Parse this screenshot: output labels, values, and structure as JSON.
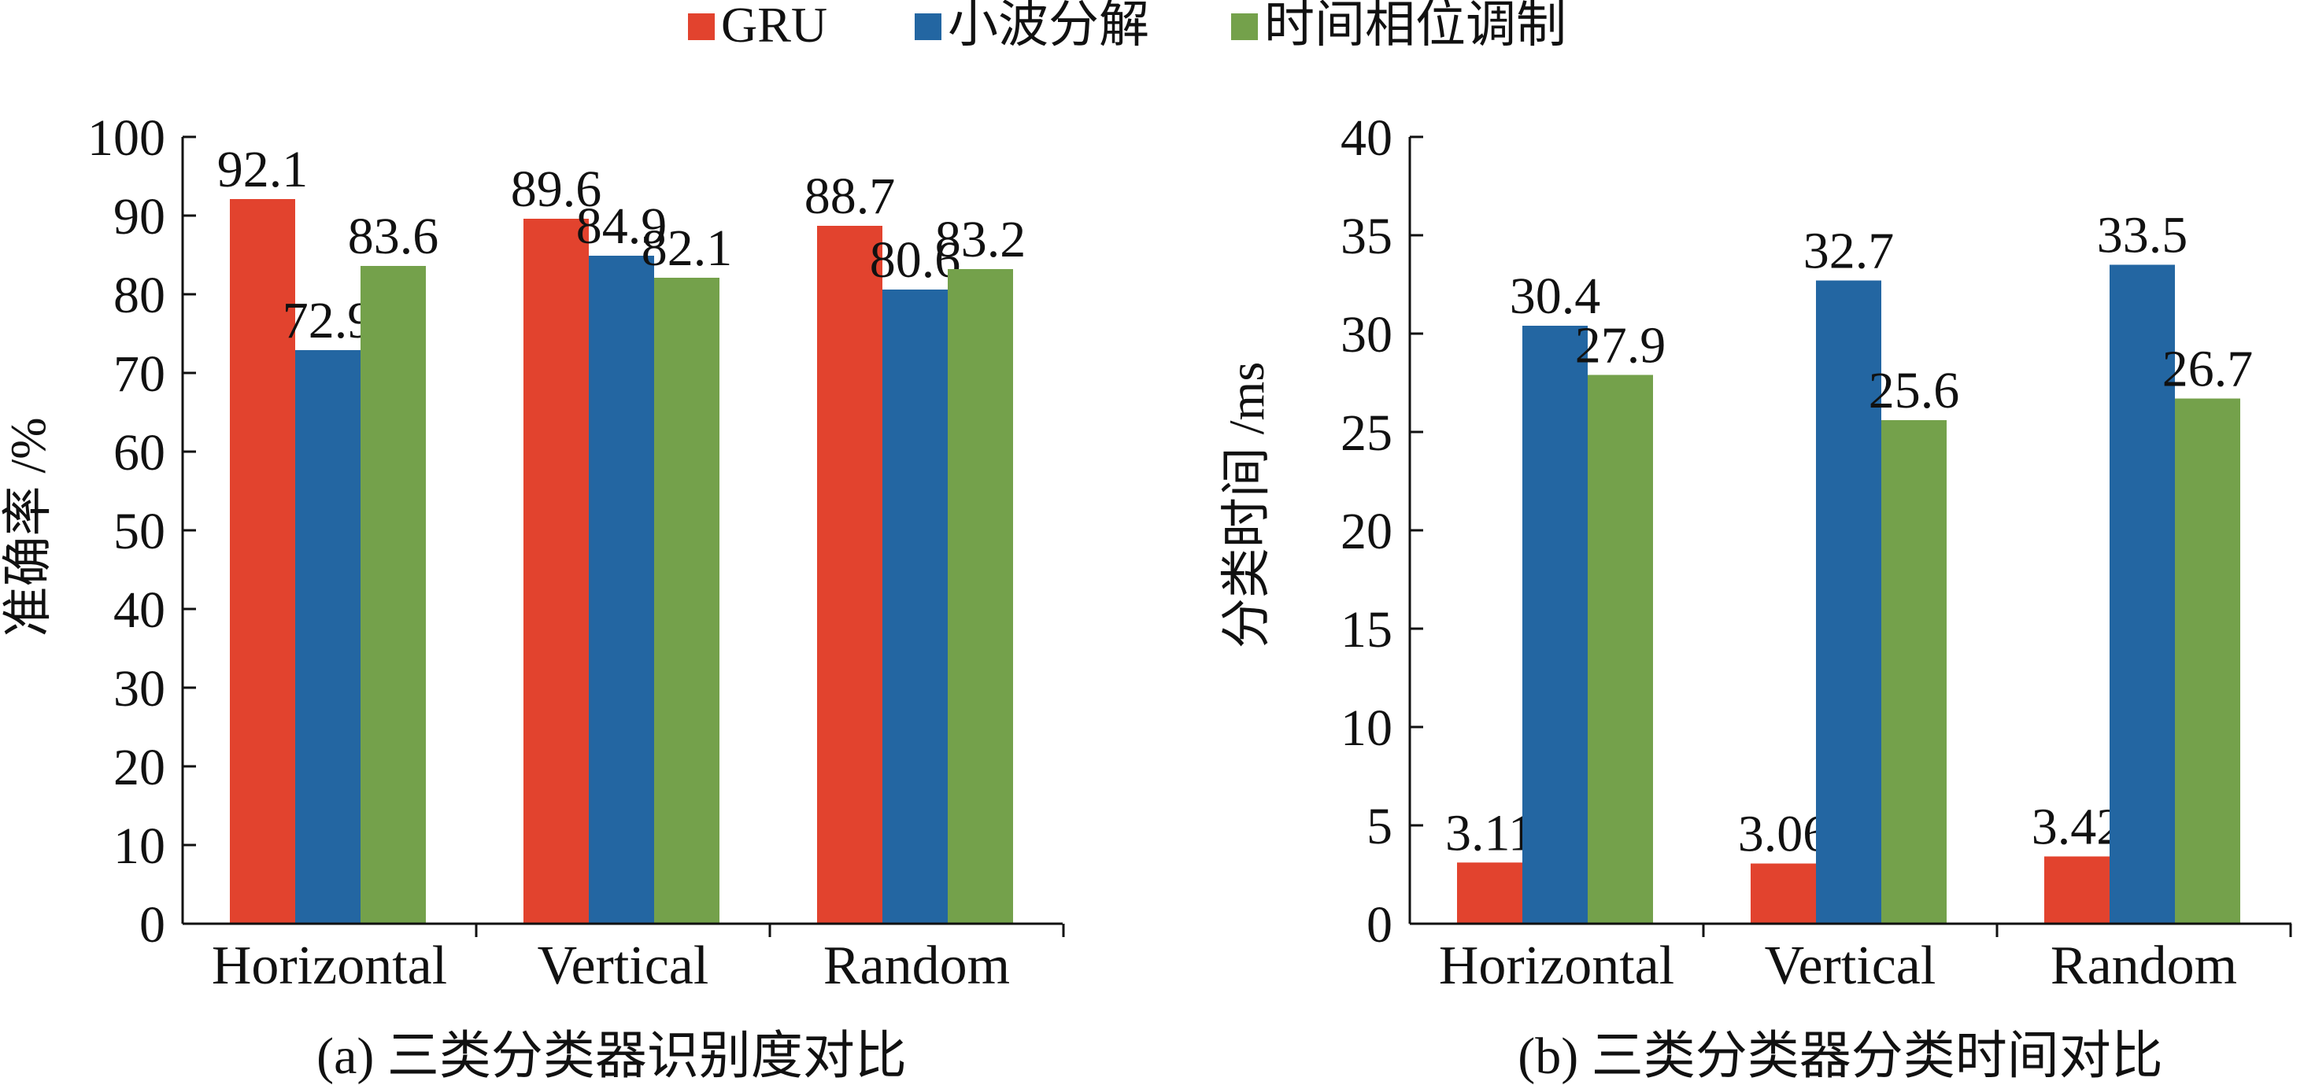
{
  "legend": {
    "position": "top-center",
    "items": [
      {
        "label": "GRU",
        "color": "#e2432e"
      },
      {
        "label": "小波分解",
        "color": "#2366a2"
      },
      {
        "label": "时间相位调制",
        "color": "#74a14b"
      }
    ]
  },
  "chart_data": [
    {
      "type": "bar",
      "title": "(a) 三类分类器识别度对比",
      "xlabel": "",
      "ylabel": "准确率 /%",
      "categories": [
        "Horizontal",
        "Vertical",
        "Random"
      ],
      "series": [
        {
          "name": "GRU",
          "values": [
            92.1,
            89.6,
            88.7
          ],
          "labels": [
            "92.1",
            "89.6",
            "88.7"
          ]
        },
        {
          "name": "小波分解",
          "values": [
            72.9,
            84.9,
            80.6
          ],
          "labels": [
            "72.9",
            "84.9",
            "80.6"
          ]
        },
        {
          "name": "时间相位调制",
          "values": [
            83.6,
            82.1,
            83.2
          ],
          "labels": [
            "83.6",
            "82.1",
            "83.2"
          ]
        }
      ],
      "ylim": [
        0,
        100
      ],
      "yticks": [
        0,
        10,
        20,
        30,
        40,
        50,
        60,
        70,
        80,
        90,
        100
      ],
      "grid": false
    },
    {
      "type": "bar",
      "title": "(b) 三类分类器分类时间对比",
      "xlabel": "",
      "ylabel": "分类时间 /ms",
      "categories": [
        "Horizontal",
        "Vertical",
        "Random"
      ],
      "series": [
        {
          "name": "GRU",
          "values": [
            3.11,
            3.06,
            3.42
          ],
          "labels": [
            "3.11",
            "3.06",
            "3.42"
          ]
        },
        {
          "name": "小波分解",
          "values": [
            30.4,
            32.7,
            33.5
          ],
          "labels": [
            "30.4",
            "32.7",
            "33.5"
          ]
        },
        {
          "name": "时间相位调制",
          "values": [
            27.9,
            25.6,
            26.7
          ],
          "labels": [
            "27.9",
            "25.6",
            "26.7"
          ]
        }
      ],
      "ylim": [
        0,
        40
      ],
      "yticks": [
        0,
        5,
        10,
        15,
        20,
        25,
        30,
        35,
        40
      ],
      "grid": false
    }
  ]
}
